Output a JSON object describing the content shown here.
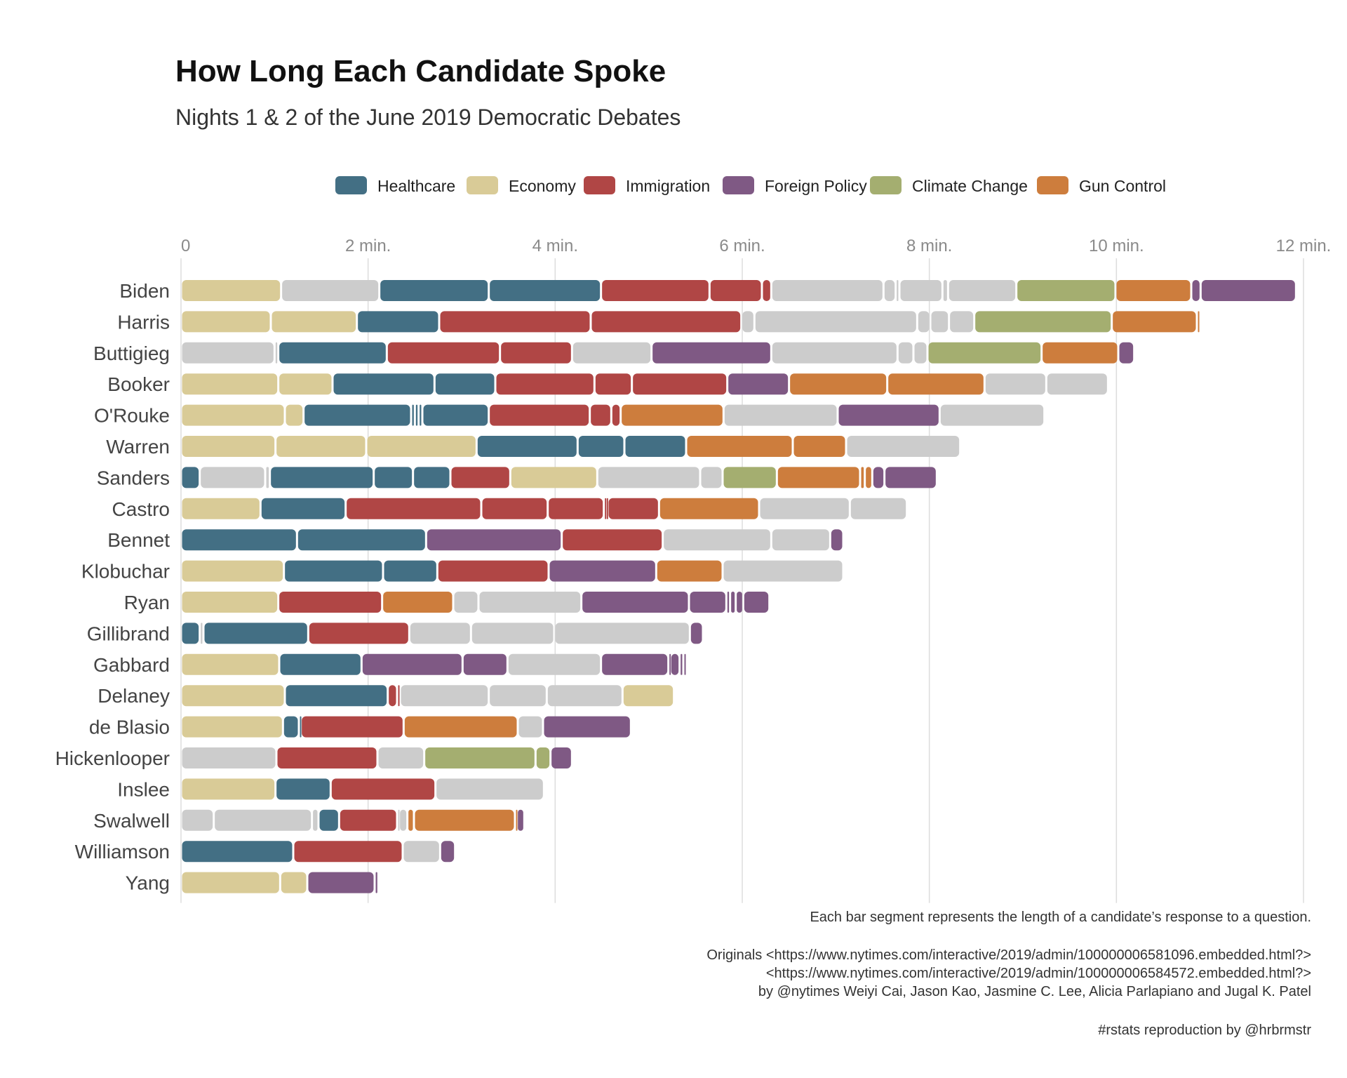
{
  "chart_data": {
    "type": "bar",
    "stacked": true,
    "orientation": "horizontal",
    "title": "How Long Each Candidate Spoke",
    "subtitle": "Nights 1 & 2 of the June 2019 Democratic Debates",
    "xlim": [
      0,
      12
    ],
    "x_ticks": [
      {
        "value": 0,
        "label": "0"
      },
      {
        "value": 2,
        "label": "2 min."
      },
      {
        "value": 4,
        "label": "4 min."
      },
      {
        "value": 6,
        "label": "6 min."
      },
      {
        "value": 8,
        "label": "8 min."
      },
      {
        "value": 10,
        "label": "10 min."
      },
      {
        "value": 12,
        "label": "12 min."
      }
    ],
    "legend": [
      {
        "key": "Healthcare",
        "label": "Healthcare",
        "color": "#436f84"
      },
      {
        "key": "Economy",
        "label": "Economy",
        "color": "#d9cb97"
      },
      {
        "key": "Immigration",
        "label": "Immigration",
        "color": "#b04645"
      },
      {
        "key": "Foreign Policy",
        "label": "Foreign Policy",
        "color": "#7f5984"
      },
      {
        "key": "Climate Change",
        "label": "Climate Change",
        "color": "#a4ae70"
      },
      {
        "key": "Gun Control",
        "label": "Gun Control",
        "color": "#cd7d3d"
      }
    ],
    "other_color": "#cccccc",
    "series": [
      {
        "candidate": "Biden",
        "segments": [
          [
            "Economy",
            1.07
          ],
          [
            "Other",
            1.05
          ],
          [
            "Healthcare",
            1.17
          ],
          [
            "Healthcare",
            1.2
          ],
          [
            "Immigration",
            1.16
          ],
          [
            "Immigration",
            0.56
          ],
          [
            "Immigration",
            0.1
          ],
          [
            "Other",
            1.2
          ],
          [
            "Other",
            0.13
          ],
          [
            "Other",
            0.04
          ],
          [
            "Other",
            0.46
          ],
          [
            "Other",
            0.06
          ],
          [
            "Other",
            0.73
          ],
          [
            "Climate Change",
            1.06
          ],
          [
            "Gun Control",
            0.81
          ],
          [
            "Foreign Policy",
            0.1
          ],
          [
            "Foreign Policy",
            1.02
          ]
        ]
      },
      {
        "candidate": "Harris",
        "segments": [
          [
            "Economy",
            0.96
          ],
          [
            "Economy",
            0.92
          ],
          [
            "Healthcare",
            0.88
          ],
          [
            "Immigration",
            1.62
          ],
          [
            "Immigration",
            1.61
          ],
          [
            "Other",
            0.14
          ],
          [
            "Other",
            1.74
          ],
          [
            "Other",
            0.14
          ],
          [
            "Other",
            0.2
          ],
          [
            "Other",
            0.27
          ],
          [
            "Climate Change",
            1.47
          ],
          [
            "Gun Control",
            0.91
          ],
          [
            "Gun Control",
            0.02
          ]
        ]
      },
      {
        "candidate": "Buttigieg",
        "segments": [
          [
            "Other",
            1.0
          ],
          [
            "Other",
            0.04
          ],
          [
            "Healthcare",
            1.16
          ],
          [
            "Immigration",
            1.21
          ],
          [
            "Immigration",
            0.77
          ],
          [
            "Other",
            0.85
          ],
          [
            "Foreign Policy",
            1.28
          ],
          [
            "Other",
            1.35
          ],
          [
            "Other",
            0.17
          ],
          [
            "Other",
            0.15
          ],
          [
            "Climate Change",
            1.22
          ],
          [
            "Gun Control",
            0.82
          ],
          [
            "Foreign Policy",
            0.17
          ]
        ]
      },
      {
        "candidate": "Booker",
        "segments": [
          [
            "Economy",
            1.04
          ],
          [
            "Economy",
            0.58
          ],
          [
            "Healthcare",
            1.09
          ],
          [
            "Healthcare",
            0.65
          ],
          [
            "Immigration",
            1.06
          ],
          [
            "Immigration",
            0.4
          ],
          [
            "Immigration",
            1.02
          ],
          [
            "Foreign Policy",
            0.66
          ],
          [
            "Gun Control",
            1.05
          ],
          [
            "Gun Control",
            1.04
          ],
          [
            "Other",
            0.66
          ],
          [
            "Other",
            0.66
          ]
        ]
      },
      {
        "candidate": "O'Rouke",
        "segments": [
          [
            "Economy",
            1.11
          ],
          [
            "Economy",
            0.2
          ],
          [
            "Healthcare",
            1.15
          ],
          [
            "Healthcare",
            0.04
          ],
          [
            "Healthcare",
            0.04
          ],
          [
            "Healthcare",
            0.04
          ],
          [
            "Healthcare",
            0.71
          ],
          [
            "Immigration",
            1.08
          ],
          [
            "Immigration",
            0.23
          ],
          [
            "Immigration",
            0.1
          ],
          [
            "Gun Control",
            1.1
          ],
          [
            "Other",
            1.22
          ],
          [
            "Foreign Policy",
            1.09
          ],
          [
            "Other",
            1.12
          ]
        ]
      },
      {
        "candidate": "Warren",
        "segments": [
          [
            "Economy",
            1.01
          ],
          [
            "Economy",
            0.97
          ],
          [
            "Economy",
            1.18
          ],
          [
            "Healthcare",
            1.08
          ],
          [
            "Healthcare",
            0.5
          ],
          [
            "Healthcare",
            0.66
          ],
          [
            "Gun Control",
            1.14
          ],
          [
            "Gun Control",
            0.57
          ],
          [
            "Other",
            1.22
          ]
        ]
      },
      {
        "candidate": "Sanders",
        "segments": [
          [
            "Healthcare",
            0.2
          ],
          [
            "Other",
            0.7
          ],
          [
            "Other",
            0.05
          ],
          [
            "Healthcare",
            1.11
          ],
          [
            "Healthcare",
            0.42
          ],
          [
            "Healthcare",
            0.4
          ],
          [
            "Immigration",
            0.64
          ],
          [
            "Economy",
            0.93
          ],
          [
            "Other",
            1.1
          ],
          [
            "Other",
            0.24
          ],
          [
            "Climate Change",
            0.58
          ],
          [
            "Gun Control",
            0.89
          ],
          [
            "Gun Control",
            0.05
          ],
          [
            "Gun Control",
            0.08
          ],
          [
            "Foreign Policy",
            0.13
          ],
          [
            "Foreign Policy",
            0.56
          ]
        ]
      },
      {
        "candidate": "Castro",
        "segments": [
          [
            "Economy",
            0.85
          ],
          [
            "Healthcare",
            0.91
          ],
          [
            "Immigration",
            1.45
          ],
          [
            "Immigration",
            0.71
          ],
          [
            "Immigration",
            0.6
          ],
          [
            "Immigration",
            0.02
          ],
          [
            "Immigration",
            0.02
          ],
          [
            "Immigration",
            0.55
          ],
          [
            "Gun Control",
            1.07
          ],
          [
            "Other",
            0.97
          ],
          [
            "Other",
            0.61
          ]
        ]
      },
      {
        "candidate": "Bennet",
        "segments": [
          [
            "Healthcare",
            1.24
          ],
          [
            "Healthcare",
            1.38
          ],
          [
            "Foreign Policy",
            1.45
          ],
          [
            "Immigration",
            1.08
          ],
          [
            "Other",
            1.16
          ],
          [
            "Other",
            0.63
          ],
          [
            "Foreign Policy",
            0.14
          ]
        ]
      },
      {
        "candidate": "Klobuchar",
        "segments": [
          [
            "Economy",
            1.1
          ],
          [
            "Healthcare",
            1.06
          ],
          [
            "Healthcare",
            0.58
          ],
          [
            "Immigration",
            1.19
          ],
          [
            "Foreign Policy",
            1.15
          ],
          [
            "Gun Control",
            0.71
          ],
          [
            "Other",
            1.29
          ]
        ]
      },
      {
        "candidate": "Ryan",
        "segments": [
          [
            "Economy",
            1.04
          ],
          [
            "Immigration",
            1.11
          ],
          [
            "Gun Control",
            0.76
          ],
          [
            "Other",
            0.27
          ],
          [
            "Other",
            1.1
          ],
          [
            "Foreign Policy",
            1.15
          ],
          [
            "Foreign Policy",
            0.4
          ],
          [
            "Foreign Policy",
            0.04
          ],
          [
            "Foreign Policy",
            0.06
          ],
          [
            "Foreign Policy",
            0.08
          ],
          [
            "Foreign Policy",
            0.28
          ]
        ]
      },
      {
        "candidate": "Gillibrand",
        "segments": [
          [
            "Healthcare",
            0.2
          ],
          [
            "Other",
            0.04
          ],
          [
            "Healthcare",
            1.12
          ],
          [
            "Immigration",
            1.08
          ],
          [
            "Other",
            0.66
          ],
          [
            "Other",
            0.89
          ],
          [
            "Other",
            1.45
          ],
          [
            "Foreign Policy",
            0.14
          ]
        ]
      },
      {
        "candidate": "Gabbard",
        "segments": [
          [
            "Economy",
            1.05
          ],
          [
            "Healthcare",
            0.88
          ],
          [
            "Foreign Policy",
            1.08
          ],
          [
            "Foreign Policy",
            0.48
          ],
          [
            "Other",
            1.0
          ],
          [
            "Foreign Policy",
            0.72
          ],
          [
            "Foreign Policy",
            0.02
          ],
          [
            "Foreign Policy",
            0.1
          ],
          [
            "Foreign Policy",
            0.04
          ],
          [
            "Foreign Policy",
            0.03
          ]
        ]
      },
      {
        "candidate": "Delaney",
        "segments": [
          [
            "Economy",
            1.11
          ],
          [
            "Healthcare",
            1.1
          ],
          [
            "Immigration",
            0.1
          ],
          [
            "Immigration",
            0.03
          ],
          [
            "Other",
            0.95
          ],
          [
            "Other",
            0.62
          ],
          [
            "Other",
            0.81
          ],
          [
            "Economy",
            0.55
          ]
        ]
      },
      {
        "candidate": "de Blasio",
        "segments": [
          [
            "Economy",
            1.09
          ],
          [
            "Healthcare",
            0.17
          ],
          [
            "Healthcare",
            0.02
          ],
          [
            "Immigration",
            1.1
          ],
          [
            "Gun Control",
            1.22
          ],
          [
            "Other",
            0.27
          ],
          [
            "Foreign Policy",
            0.94
          ]
        ]
      },
      {
        "candidate": "Hickenlooper",
        "segments": [
          [
            "Other",
            1.02
          ],
          [
            "Immigration",
            1.08
          ],
          [
            "Other",
            0.5
          ],
          [
            "Climate Change",
            1.19
          ],
          [
            "Climate Change",
            0.16
          ],
          [
            "Foreign Policy",
            0.23
          ]
        ]
      },
      {
        "candidate": "Inslee",
        "segments": [
          [
            "Economy",
            1.01
          ],
          [
            "Healthcare",
            0.59
          ],
          [
            "Immigration",
            1.12
          ],
          [
            "Other",
            1.16
          ]
        ]
      },
      {
        "candidate": "Swalwell",
        "segments": [
          [
            "Other",
            0.35
          ],
          [
            "Other",
            1.05
          ],
          [
            "Other",
            0.07
          ],
          [
            "Healthcare",
            0.22
          ],
          [
            "Immigration",
            0.62
          ],
          [
            "Other",
            0.02
          ],
          [
            "Other",
            0.09
          ],
          [
            "Gun Control",
            0.07
          ],
          [
            "Gun Control",
            1.08
          ],
          [
            "Gun Control",
            0.02
          ],
          [
            "Foreign Policy",
            0.08
          ]
        ]
      },
      {
        "candidate": "Williamson",
        "segments": [
          [
            "Healthcare",
            1.2
          ],
          [
            "Immigration",
            1.17
          ],
          [
            "Other",
            0.4
          ],
          [
            "Foreign Policy",
            0.16
          ]
        ]
      },
      {
        "candidate": "Yang",
        "segments": [
          [
            "Economy",
            1.06
          ],
          [
            "Economy",
            0.29
          ],
          [
            "Foreign Policy",
            0.72
          ],
          [
            "Foreign Policy",
            0.04
          ]
        ]
      }
    ],
    "captions": [
      "Each bar segment represents the length of a candidate’s response to a question.",
      "Originals <https://www.nytimes.com/interactive/2019/admin/100000006581096.embedded.html?>",
      "<https://www.nytimes.com/interactive/2019/admin/100000006584572.embedded.html?>",
      "by @nytimes Weiyi Cai, Jason Kao, Jasmine C. Lee, Alicia Parlapiano and Jugal K. Patel",
      "#rstats reproduction by @hrbrmstr"
    ]
  }
}
